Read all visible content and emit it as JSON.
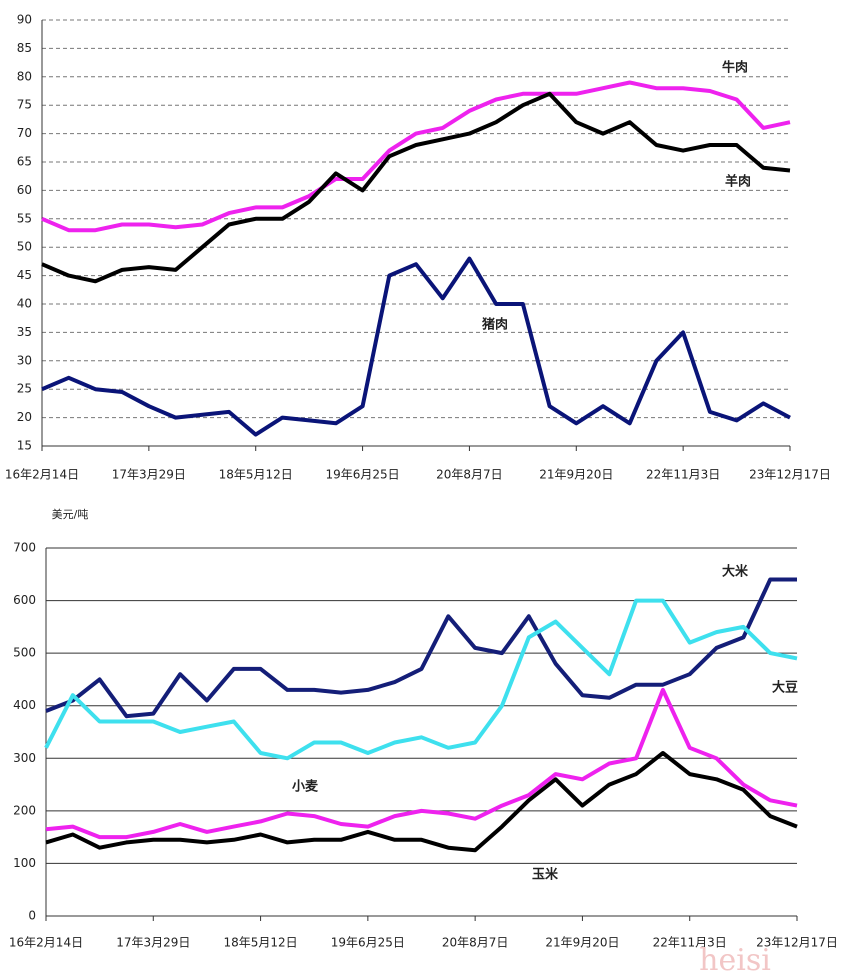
{
  "chart_data": [
    {
      "type": "line",
      "categories": [
        "16年2月14日",
        null,
        null,
        null,
        "17年3月29日",
        null,
        null,
        null,
        "18年5月12日",
        null,
        null,
        null,
        "19年6月25日",
        null,
        null,
        null,
        "20年8月7日",
        null,
        null,
        null,
        "21年9月20日",
        null,
        null,
        null,
        "22年11月3日",
        null,
        null,
        null,
        "23年12月17日"
      ],
      "ylim": [
        15,
        90
      ],
      "yticks": [
        15,
        20,
        25,
        30,
        35,
        40,
        45,
        50,
        55,
        60,
        65,
        70,
        75,
        80,
        85,
        90
      ],
      "grid": "dashed",
      "series": [
        {
          "name": "牛肉",
          "color": "#ee22ee",
          "values": [
            55,
            53,
            53,
            54,
            54,
            53.5,
            54,
            56,
            57,
            57,
            59,
            62,
            62,
            67,
            70,
            71,
            74,
            76,
            77,
            77,
            77,
            78,
            79,
            78,
            78,
            77.5,
            76,
            71,
            72
          ]
        },
        {
          "name": "羊肉",
          "color": "#000000",
          "values": [
            47,
            45,
            44,
            46,
            46.5,
            46,
            50,
            54,
            55,
            55,
            58,
            63,
            60,
            66,
            68,
            69,
            70,
            72,
            75,
            77,
            72,
            70,
            72,
            68,
            67,
            68,
            68,
            64,
            63.5
          ]
        },
        {
          "name": "猪肉",
          "color": "#0a1478",
          "values": [
            25,
            27,
            25,
            24.5,
            22,
            20,
            20.5,
            21,
            17,
            20,
            19.5,
            19,
            22,
            45,
            47,
            41,
            48,
            40,
            40,
            22,
            19,
            22,
            19,
            30,
            35,
            21,
            19.5,
            22.5,
            20
          ]
        }
      ]
    },
    {
      "type": "line",
      "y_label": "美元/吨",
      "categories": [
        "16年2月14日",
        null,
        null,
        null,
        "17年3月29日",
        null,
        null,
        null,
        "18年5月12日",
        null,
        null,
        null,
        "19年6月25日",
        null,
        null,
        null,
        "20年8月7日",
        null,
        null,
        null,
        "21年9月20日",
        null,
        null,
        null,
        "22年11月3日",
        null,
        null,
        null,
        "23年12月17日"
      ],
      "ylim": [
        0,
        700
      ],
      "yticks": [
        0,
        100,
        200,
        300,
        400,
        500,
        600,
        700
      ],
      "grid": "solid",
      "series": [
        {
          "name": "大米",
          "color": "#141e78",
          "values": [
            390,
            410,
            450,
            380,
            385,
            460,
            410,
            470,
            470,
            430,
            430,
            425,
            430,
            445,
            470,
            570,
            510,
            500,
            570,
            480,
            420,
            415,
            440,
            440,
            460,
            510,
            530,
            640,
            640
          ]
        },
        {
          "name": "大豆",
          "color": "#3ee0ee",
          "values": [
            320,
            420,
            370,
            370,
            370,
            350,
            360,
            370,
            310,
            300,
            330,
            330,
            310,
            330,
            340,
            320,
            330,
            400,
            530,
            560,
            510,
            460,
            600,
            600,
            520,
            540,
            550,
            500,
            490
          ]
        },
        {
          "name": "小麦",
          "color": "#ee22ee",
          "values": [
            165,
            170,
            150,
            150,
            160,
            175,
            160,
            170,
            180,
            195,
            190,
            175,
            170,
            190,
            200,
            195,
            185,
            210,
            230,
            270,
            260,
            290,
            300,
            430,
            320,
            300,
            250,
            220,
            210
          ]
        },
        {
          "name": "玉米",
          "color": "#000000",
          "values": [
            140,
            155,
            130,
            140,
            145,
            145,
            140,
            145,
            155,
            140,
            145,
            145,
            160,
            145,
            145,
            130,
            125,
            170,
            220,
            260,
            210,
            250,
            270,
            310,
            270,
            260,
            240,
            190,
            170
          ]
        }
      ]
    }
  ],
  "watermark": "heisi"
}
